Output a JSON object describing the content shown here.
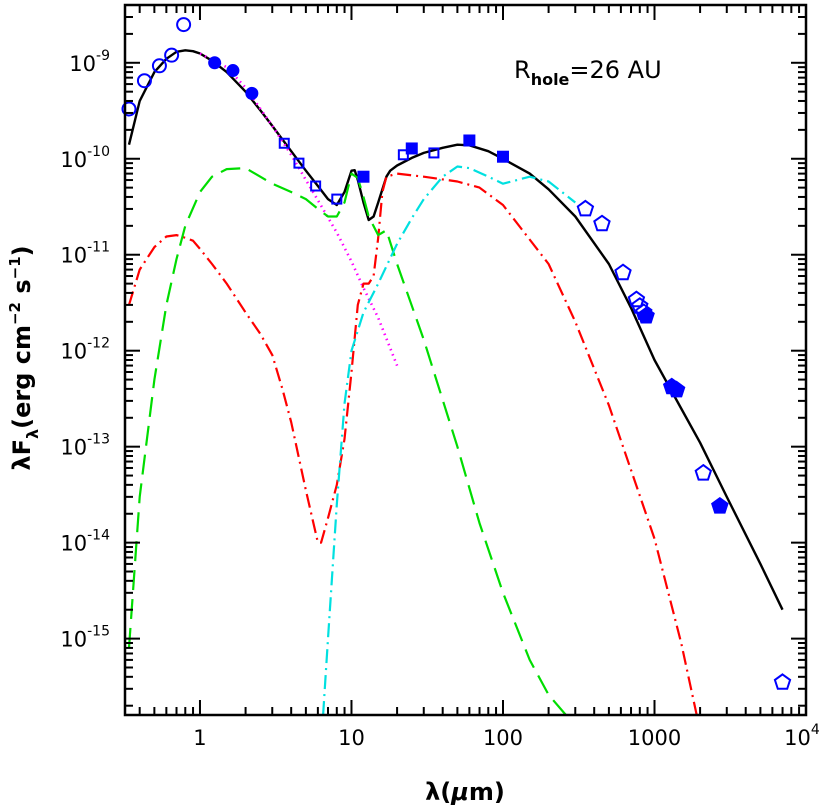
{
  "chart_data": {
    "type": "line",
    "xscale": "log",
    "yscale": "log",
    "xlim": [
      0.32,
      10000
    ],
    "ylim": [
      1.6e-16,
      4e-09
    ],
    "x_tick_labels": [
      "1",
      "10",
      "100",
      "1000",
      "10"
    ],
    "x_tick_last_exponent": "4",
    "y_tick_labels": [
      {
        "base": "10",
        "exp": "-9"
      },
      {
        "base": "10",
        "exp": "-10"
      },
      {
        "base": "10",
        "exp": "-11"
      },
      {
        "base": "10",
        "exp": "-12"
      },
      {
        "base": "10",
        "exp": "-13"
      },
      {
        "base": "10",
        "exp": "-14"
      },
      {
        "base": "10",
        "exp": "-15"
      }
    ],
    "xlabel": {
      "main": "λ(",
      "mu": "μ",
      "rest": "m)"
    },
    "ylabel": {
      "lambda": "λF",
      "sub": "λ",
      "a": "(erg cm",
      "e1": "−2",
      "b": " s",
      "e2": "−1",
      "c": ")"
    },
    "annotation": {
      "prefix": "R",
      "sub": "hole",
      "suffix": "=26 AU"
    },
    "colors": {
      "total": "#000000",
      "star": "#ff00ff",
      "disk": "#ff0000",
      "wall": "#00dd00",
      "outer": "#00e0e0",
      "points": "#0000ff"
    },
    "series": [
      {
        "style": "solid",
        "color": "total",
        "x": [
          0.34,
          0.4,
          0.5,
          0.6,
          0.7,
          0.8,
          0.9,
          1.0,
          1.2,
          1.5,
          2.0,
          2.5,
          3.0,
          4.0,
          5.0,
          6.0,
          7.0,
          8.0,
          9.0,
          10.0,
          10.5,
          11.0,
          12.0,
          13.0,
          14.0,
          15.0,
          16.0,
          17.0,
          18.0,
          20.0,
          25.0,
          30.0,
          40.0,
          50.0,
          60.0,
          80.0,
          100.0,
          150.0,
          200.0,
          300.0,
          500.0,
          700.0,
          1000.0,
          1500.0,
          2000.0,
          3000.0,
          5000.0,
          7000.0
        ],
        "y": [
          1.4e-10,
          4e-10,
          8e-10,
          1.1e-09,
          1.3e-09,
          1.35e-09,
          1.32e-09,
          1.25e-09,
          1.05e-09,
          8e-10,
          5e-10,
          3.2e-10,
          2.2e-10,
          1.2e-10,
          7.5e-11,
          5.2e-11,
          3.8e-11,
          3.3e-11,
          4.5e-11,
          7.5e-11,
          7.6e-11,
          6e-11,
          3.5e-11,
          2.3e-11,
          2.5e-11,
          3.5e-11,
          4.8e-11,
          6.5e-11,
          7.5e-11,
          8.5e-11,
          1.02e-10,
          1.15e-10,
          1.3e-10,
          1.4e-10,
          1.38e-10,
          1.2e-10,
          1e-10,
          7e-11,
          4.8e-11,
          2.5e-11,
          8e-12,
          2.8e-12,
          8e-13,
          2.5e-13,
          1.1e-13,
          3e-14,
          6e-15,
          2e-15
        ]
      },
      {
        "style": "dotted",
        "color": "star",
        "x": [
          1.0,
          1.5,
          2.0,
          3.0,
          4.0,
          5.0,
          6.0,
          8.0,
          10.0,
          12.0,
          15.0,
          20.0
        ],
        "y": [
          1.25e-09,
          9e-10,
          5.5e-10,
          2.2e-10,
          1.1e-10,
          6e-11,
          3.7e-11,
          1.7e-11,
          8.5e-12,
          4.5e-12,
          2.2e-12,
          7e-13
        ]
      },
      {
        "style": "dashdot",
        "color": "disk",
        "x": [
          0.34,
          0.4,
          0.5,
          0.6,
          0.7,
          0.8,
          0.9,
          1.0,
          1.2,
          1.5,
          2.0,
          2.5,
          3.0,
          3.5,
          4.0,
          5.0,
          6.0,
          6.3,
          7.0,
          8.0,
          9.0,
          10.0,
          11.0,
          12.0,
          13.0,
          14.0,
          15.0,
          16.0,
          17.0,
          20.0,
          30.0,
          50.0,
          70.0,
          100.0,
          200.0,
          300.0,
          500.0,
          1000.0,
          1500.0,
          1900.0
        ],
        "y": [
          3e-12,
          7e-12,
          1.2e-11,
          1.55e-11,
          1.6e-11,
          1.5e-11,
          1.4e-11,
          1.15e-11,
          8e-12,
          5e-12,
          2.5e-12,
          1.5e-12,
          9e-13,
          4e-13,
          1.8e-13,
          3.5e-14,
          1e-14,
          1e-14,
          1.8e-14,
          4e-14,
          1.2e-13,
          6e-13,
          3e-12,
          5e-12,
          5e-12,
          6e-12,
          1.5e-11,
          4.5e-11,
          6.5e-11,
          7e-11,
          6.5e-11,
          5.8e-11,
          5e-11,
          3.3e-11,
          8e-12,
          2e-12,
          2.7e-13,
          1.1e-14,
          9e-16,
          1.6e-16
        ]
      },
      {
        "style": "longdash",
        "color": "wall",
        "x": [
          0.34,
          0.4,
          0.5,
          0.6,
          0.7,
          0.8,
          1.0,
          1.2,
          1.5,
          2.0,
          2.5,
          3.0,
          4.0,
          5.0,
          6.0,
          7.0,
          8.0,
          9.0,
          10.0,
          11.0,
          12.0,
          13.0,
          15.0,
          17.0,
          20.0,
          30.0,
          50.0,
          70.0,
          100.0,
          150.0,
          200.0,
          260.0
        ],
        "y": [
          8e-16,
          3e-14,
          5e-13,
          3e-12,
          9e-12,
          2e-11,
          4.5e-11,
          6.5e-11,
          7.8e-11,
          8e-11,
          6.5e-11,
          5.5e-11,
          4.5e-11,
          3.8e-11,
          3e-11,
          2.5e-11,
          2.5e-11,
          3.5e-11,
          7e-11,
          6.3e-11,
          4e-11,
          2.5e-11,
          1.6e-11,
          1.8e-11,
          8e-12,
          1.3e-12,
          1e-13,
          1.6e-14,
          3e-15,
          6e-16,
          2.6e-16,
          1.6e-16
        ]
      },
      {
        "style": "dashdot",
        "color": "outer",
        "x": [
          6.5,
          7.0,
          8.0,
          9.0,
          10.0,
          12.0,
          15.0,
          20.0,
          25.0,
          30.0,
          40.0,
          50.0,
          60.0,
          80.0,
          100.0,
          150.0,
          200.0,
          300.0
        ],
        "y": [
          1.6e-16,
          1e-15,
          2.5e-14,
          2.8e-13,
          1e-12,
          2.5e-12,
          5e-12,
          1.3e-11,
          2.4e-11,
          3.8e-11,
          6.5e-11,
          8.3e-11,
          8e-11,
          6.5e-11,
          5.5e-11,
          6.5e-11,
          5.8e-11,
          3.5e-11
        ]
      }
    ],
    "points": [
      {
        "marker": "circle-open",
        "x": [
          0.34,
          0.43,
          0.54,
          0.65,
          0.78
        ],
        "y": [
          3.3e-10,
          6.5e-10,
          9.3e-10,
          1.2e-09,
          2.5e-09
        ]
      },
      {
        "marker": "circle-filled",
        "x": [
          1.25,
          1.65,
          2.2
        ],
        "y": [
          1e-09,
          8.3e-10,
          4.8e-10
        ]
      },
      {
        "marker": "square-open",
        "x": [
          3.6,
          4.5,
          5.8,
          8.0,
          22.0,
          35.0
        ],
        "y": [
          1.45e-10,
          9e-11,
          5.2e-11,
          3.8e-11,
          1.1e-10,
          1.15e-10
        ]
      },
      {
        "marker": "square-filled",
        "x": [
          12.0,
          25.0,
          60.0,
          100.0
        ],
        "y": [
          6.5e-11,
          1.28e-10,
          1.55e-10,
          1.05e-10
        ]
      },
      {
        "marker": "pentagon-open",
        "x": [
          350.0,
          450.0,
          620.0,
          760.0,
          800.0,
          850.0,
          2100.0,
          7000.0
        ],
        "y": [
          3e-11,
          2.1e-11,
          6.5e-12,
          3.4e-12,
          2.9e-12,
          2.5e-12,
          5.3e-14,
          3.5e-16
        ]
      },
      {
        "marker": "pentagon-filled",
        "x": [
          880.0,
          1300.0,
          1400.0,
          2700.0
        ],
        "y": [
          2.3e-12,
          4.2e-13,
          3.9e-13,
          2.4e-14
        ]
      }
    ]
  }
}
